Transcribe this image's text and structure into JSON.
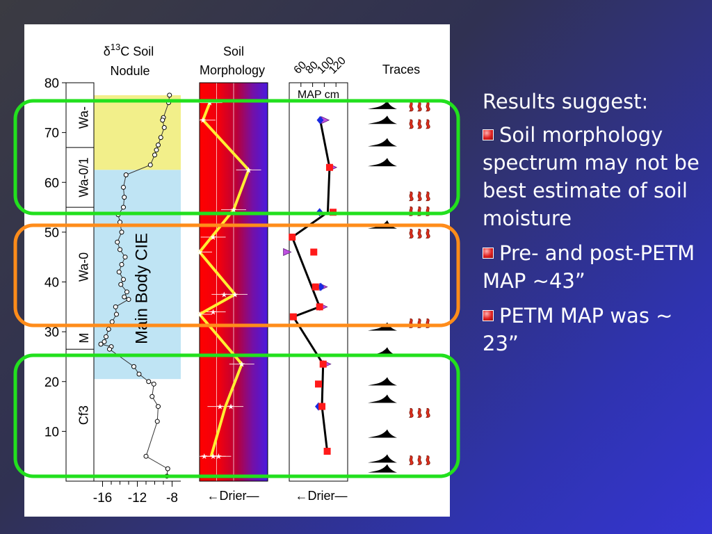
{
  "slide": {
    "heading": "Results suggest:",
    "bullets": [
      "Soil morphology spectrum may not be best estimate of soil moisture",
      "Pre- and post-PETM MAP ~43”",
      "PETM MAP was ~ 23”"
    ],
    "bullet_color": "#e02020",
    "highlight_colors": {
      "green": "#22e01e",
      "orange": "#ff8c1a"
    }
  },
  "chart_data": {
    "type": "scatter",
    "y_axis": {
      "range": [
        0,
        80
      ],
      "ticks": [
        10,
        20,
        30,
        40,
        50,
        60,
        70,
        80
      ]
    },
    "zones": [
      {
        "label": "Cf3",
        "from": 0,
        "to": 26.5
      },
      {
        "label": "M",
        "from": 26.5,
        "to": 31
      },
      {
        "label": "Wa-0",
        "from": 31,
        "to": 55
      },
      {
        "label": "Wa-0/1",
        "from": 55,
        "to": 67
      },
      {
        "label": "Wa-",
        "from": 67,
        "to": 79
      }
    ],
    "bands": [
      {
        "color": "#f2ef8a",
        "from": 62.5,
        "to": 77.5
      },
      {
        "color": "#bfe4f4",
        "from": 20.5,
        "to": 62.5
      }
    ],
    "band_label": "Main Body CIE",
    "panels": [
      {
        "id": "d13c",
        "title_prefix": "δ",
        "title_super": "13",
        "title_rest": "C Soil",
        "title_line2": "Nodule",
        "xlim": [
          -17,
          -7
        ],
        "ticks": [
          "-16",
          "-12",
          "-8"
        ],
        "tick_values": [
          -16,
          -12,
          -8
        ],
        "points": [
          [
            -8.3,
            77.5
          ],
          [
            -8.4,
            76
          ],
          [
            -9.0,
            73
          ],
          [
            -9.1,
            72.5
          ],
          [
            -8.9,
            71
          ],
          [
            -9.3,
            69
          ],
          [
            -9.6,
            67.5
          ],
          [
            -9.8,
            66.5
          ],
          [
            -10.0,
            65.5
          ],
          [
            -10.5,
            63.5
          ],
          [
            -13.3,
            61.5
          ],
          [
            -13.6,
            59
          ],
          [
            -13.5,
            57
          ],
          [
            -13.6,
            55
          ],
          [
            -14.2,
            53.5
          ],
          [
            -14.0,
            52
          ],
          [
            -13.8,
            50
          ],
          [
            -14.3,
            48
          ],
          [
            -14.0,
            46.5
          ],
          [
            -13.4,
            45
          ],
          [
            -13.8,
            43.5
          ],
          [
            -14.1,
            42
          ],
          [
            -13.6,
            40.5
          ],
          [
            -13.9,
            39.5
          ],
          [
            -13.2,
            38
          ],
          [
            -13.5,
            37
          ],
          [
            -13.0,
            36.5
          ],
          [
            -14.5,
            35
          ],
          [
            -14.4,
            33.5
          ],
          [
            -14.9,
            32
          ],
          [
            -15.3,
            30.5
          ],
          [
            -15.6,
            29
          ],
          [
            -15.8,
            28
          ],
          [
            -16.2,
            27.5
          ],
          [
            -15.0,
            27
          ],
          [
            -15.2,
            26.5
          ],
          [
            -12.4,
            23
          ],
          [
            -11.8,
            21.5
          ],
          [
            -10.7,
            20
          ],
          [
            -10.1,
            19.5
          ],
          [
            -10.3,
            17
          ],
          [
            -9.6,
            15
          ],
          [
            -9.7,
            12
          ],
          [
            -11.0,
            5
          ],
          [
            -8.5,
            2.5
          ],
          [
            -8.6,
            1
          ]
        ]
      },
      {
        "id": "morph",
        "title_line1": "Soil",
        "title_line2": "Morphology",
        "footer": "←Drier—",
        "line": [
          [
            0.15,
            76
          ],
          [
            0.05,
            72.5
          ],
          [
            0.72,
            62.5
          ],
          [
            0.5,
            54.5
          ],
          [
            0.0,
            46
          ],
          [
            0.52,
            37.5
          ],
          [
            0.0,
            33.5
          ],
          [
            0.62,
            23.5
          ],
          [
            0.38,
            15
          ],
          [
            0.17,
            5
          ]
        ],
        "points": [
          [
            0.15,
            76
          ],
          [
            0.05,
            72.5
          ],
          [
            0.72,
            62.5
          ],
          [
            0.5,
            54.5
          ],
          [
            0.2,
            49
          ],
          [
            0.0,
            46
          ],
          [
            0.36,
            37.5
          ],
          [
            0.52,
            37.5
          ],
          [
            0.0,
            33.5
          ],
          [
            0.2,
            34
          ],
          [
            0.62,
            23.5
          ],
          [
            0.3,
            15
          ],
          [
            0.46,
            15
          ],
          [
            0.07,
            5
          ],
          [
            0.2,
            5
          ],
          [
            0.28,
            5
          ]
        ],
        "gridlines": [
          0.25,
          0.5
        ]
      },
      {
        "id": "map",
        "title": "MAP cm",
        "ticks": [
          "60",
          "80",
          "100",
          "120"
        ],
        "tick_values": [
          60,
          80,
          100,
          120
        ],
        "xlim": [
          40,
          140
        ],
        "footer": "←Drier—",
        "line": [
          [
            93,
            72.5
          ],
          [
            109,
            63
          ],
          [
            106,
            54
          ],
          [
            45,
            49
          ],
          [
            92,
            35
          ],
          [
            47,
            33
          ],
          [
            98,
            23.5
          ],
          [
            96,
            15
          ],
          [
            105,
            6
          ]
        ],
        "squares": [
          [
            109,
            63
          ],
          [
            115,
            54
          ],
          [
            45,
            49
          ],
          [
            82,
            46
          ],
          [
            85,
            39
          ],
          [
            92,
            35
          ],
          [
            47,
            33
          ],
          [
            98,
            23.5
          ],
          [
            90,
            19.5
          ],
          [
            96,
            15
          ],
          [
            105,
            6
          ]
        ],
        "diamonds": [
          [
            93,
            72.5
          ],
          [
            92,
            54
          ],
          [
            94,
            39
          ],
          [
            90,
            15
          ]
        ],
        "triangles": [
          [
            101,
            72.5
          ],
          [
            114,
            63
          ],
          [
            36,
            46
          ],
          [
            98,
            39
          ],
          [
            98,
            35
          ],
          [
            104,
            23.5
          ]
        ]
      },
      {
        "id": "traces",
        "title": "Traces",
        "burrow_depths": [
          75,
          72,
          67.5,
          63.5,
          51,
          30.5,
          25.5,
          19.5,
          16,
          9,
          4,
          2
        ],
        "worm_depths": [
          75,
          71.5,
          57,
          54,
          49.5,
          31.5,
          13.5,
          4
        ]
      }
    ]
  }
}
